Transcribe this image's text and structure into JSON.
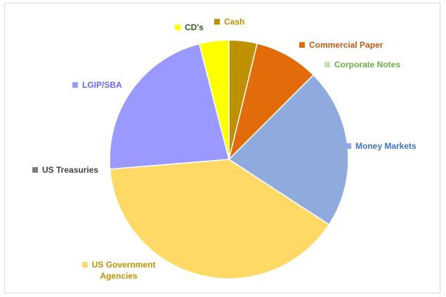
{
  "chart_data": {
    "type": "pie",
    "categories": [
      "Cash",
      "Commercial Paper",
      "Corporate Notes",
      "Money Markets",
      "US Government Agencies",
      "US Treasuries",
      "LGIP/SBA",
      "CD's"
    ],
    "values": [
      3.8,
      8.7,
      0,
      21.7,
      39.5,
      0,
      22.3,
      4.0
    ],
    "colors": [
      "#bf9000",
      "#e26b0a",
      "#c5e0b4",
      "#8faadc",
      "#ffd966",
      "#7f7f7f",
      "#9999ff",
      "#ffff00"
    ],
    "label_colors": [
      "#bf9000",
      "#c55a11",
      "#70ad47",
      "#4472c4",
      "#bf9000",
      "#404040",
      "#6666ff",
      "#375623"
    ]
  }
}
